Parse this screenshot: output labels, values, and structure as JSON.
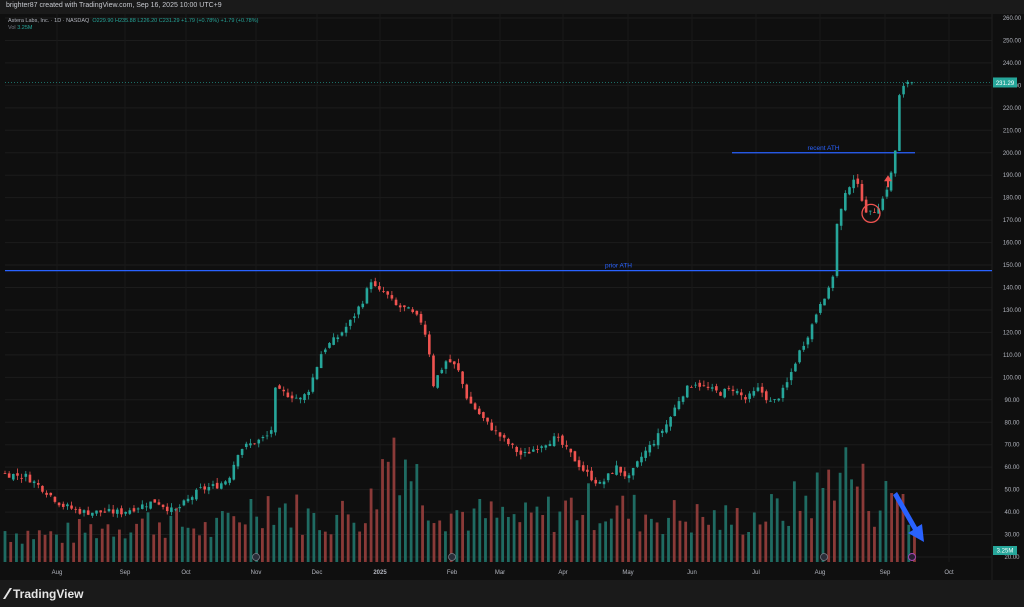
{
  "header": {
    "credit": "brighter87 created with TradingView.com, Sep 16, 2025 10:00 UTC+9"
  },
  "legend": {
    "symbol": "Astera Labs, Inc. · 1D · NASDAQ",
    "ohlc": "O229.90 H235.88 L226.20 C231.29 +1.79 (+0.78%) +1.79 (+0.78%)",
    "vol_label": "Vol",
    "vol_value": "3.25M"
  },
  "footer": {
    "brand": "TradingView"
  },
  "colors": {
    "up": "#26a69a",
    "down": "#ef5350",
    "line": "#2962ff",
    "arrow": "#2962ff",
    "circle": "#ef5350"
  },
  "icons": [
    "tradingview-logo-icon",
    "earnings-marker-icon",
    "dividend-marker-icon",
    "down-arrow-icon",
    "circle-annotation-icon",
    "up-arrow-icon"
  ],
  "chart_data": {
    "type": "candlestick",
    "title": "",
    "ylim": [
      16,
      262
    ],
    "y_ticks": [
      20,
      30,
      40,
      50,
      60,
      70,
      80,
      90,
      100,
      110,
      120,
      130,
      140,
      150,
      160,
      170,
      180,
      190,
      200,
      210,
      220,
      230,
      240,
      250,
      260
    ],
    "x_tick_labels": [
      "Aug",
      "Sep",
      "Oct",
      "Nov",
      "Dec",
      "2025",
      "Feb",
      "Mar",
      "Apr",
      "May",
      "Jun",
      "Jul",
      "Aug",
      "Sep",
      "Oct"
    ],
    "last_price": "231.29",
    "vol_badge": "3.25M",
    "horizontal_lines": [
      {
        "label": "prior ATH",
        "y": 147.5
      },
      {
        "label": "recent ATH",
        "y": 200
      }
    ],
    "close_path": [
      [
        0,
        57
      ],
      [
        8,
        56
      ],
      [
        15,
        50
      ],
      [
        22,
        43
      ],
      [
        30,
        40
      ],
      [
        45,
        40
      ],
      [
        58,
        45
      ],
      [
        65,
        40
      ],
      [
        75,
        50
      ],
      [
        82,
        52
      ],
      [
        86,
        55
      ],
      [
        90,
        68
      ],
      [
        98,
        72
      ],
      [
        101,
        74
      ],
      [
        103,
        78
      ],
      [
        104,
        94
      ],
      [
        110,
        92
      ],
      [
        114,
        90
      ],
      [
        117,
        95
      ],
      [
        122,
        112
      ],
      [
        128,
        118
      ],
      [
        133,
        125
      ],
      [
        138,
        135
      ],
      [
        141,
        144
      ],
      [
        143,
        138
      ],
      [
        146,
        138
      ],
      [
        150,
        132
      ],
      [
        155,
        130
      ],
      [
        160,
        125
      ],
      [
        163,
        115
      ],
      [
        164,
        95
      ],
      [
        167,
        102
      ],
      [
        170,
        108
      ],
      [
        174,
        104
      ],
      [
        178,
        90
      ],
      [
        185,
        80
      ],
      [
        192,
        72
      ],
      [
        199,
        65
      ],
      [
        206,
        70
      ],
      [
        212,
        73
      ],
      [
        218,
        65
      ],
      [
        223,
        58
      ],
      [
        229,
        52
      ],
      [
        235,
        60
      ],
      [
        240,
        55
      ],
      [
        245,
        65
      ],
      [
        250,
        72
      ],
      [
        255,
        80
      ],
      [
        260,
        92
      ],
      [
        265,
        98
      ],
      [
        270,
        95
      ],
      [
        275,
        93
      ],
      [
        280,
        95
      ],
      [
        285,
        90
      ],
      [
        290,
        95
      ],
      [
        295,
        88
      ],
      [
        300,
        95
      ],
      [
        305,
        110
      ],
      [
        310,
        122
      ],
      [
        314,
        135
      ],
      [
        318,
        140
      ],
      [
        320,
        168
      ],
      [
        323,
        180
      ],
      [
        326,
        190
      ],
      [
        329,
        182
      ],
      [
        332,
        172
      ],
      [
        335,
        175
      ],
      [
        338,
        180
      ],
      [
        342,
        195
      ],
      [
        344,
        225
      ],
      [
        347,
        232
      ],
      [
        350,
        231.3
      ]
    ],
    "volume_path": [
      [
        0,
        6
      ],
      [
        20,
        5
      ],
      [
        40,
        7
      ],
      [
        60,
        8
      ],
      [
        80,
        6
      ],
      [
        100,
        12
      ],
      [
        120,
        8
      ],
      [
        140,
        10
      ],
      [
        150,
        25
      ],
      [
        160,
        14
      ],
      [
        170,
        10
      ],
      [
        180,
        9
      ],
      [
        200,
        8
      ],
      [
        220,
        11
      ],
      [
        250,
        9
      ],
      [
        280,
        8
      ],
      [
        300,
        10
      ],
      [
        315,
        14
      ],
      [
        320,
        20
      ],
      [
        335,
        11
      ],
      [
        345,
        14
      ],
      [
        350,
        5
      ]
    ],
    "x_domain": [
      0,
      370
    ]
  }
}
